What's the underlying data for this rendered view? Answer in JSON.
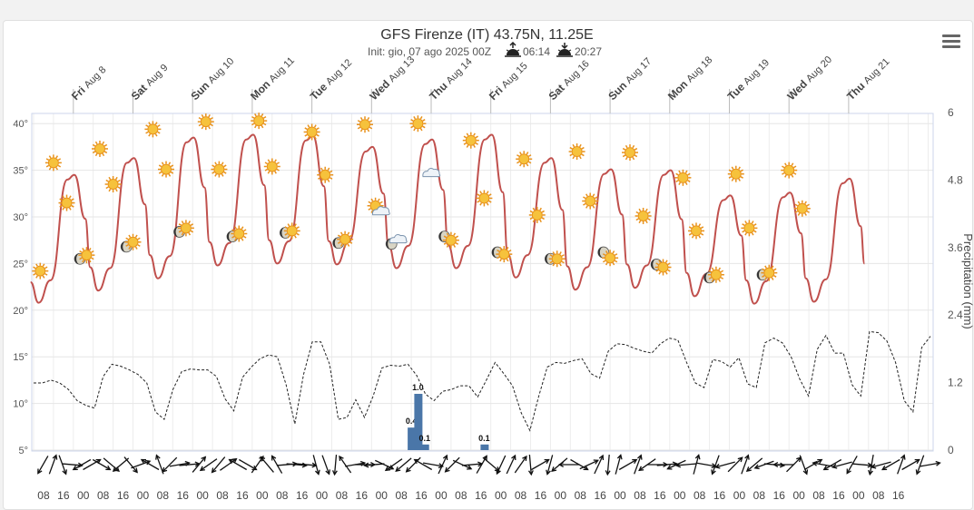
{
  "title": "GFS Firenze (IT) 43.75N, 11.25E",
  "subtitle": {
    "init": "Init: gio, 07 ago 2025 00Z",
    "sunrise": "06:14",
    "sunset": "20:27"
  },
  "menu_icon": "hamburger-menu-icon",
  "chart_data": {
    "type": "line",
    "x_day_labels": [
      {
        "dow": "Fri",
        "date": "Aug 8"
      },
      {
        "dow": "Sat",
        "date": "Aug 9"
      },
      {
        "dow": "Sun",
        "date": "Aug 10"
      },
      {
        "dow": "Mon",
        "date": "Aug 11"
      },
      {
        "dow": "Tue",
        "date": "Aug 12"
      },
      {
        "dow": "Wed",
        "date": "Aug 13"
      },
      {
        "dow": "Thu",
        "date": "Aug 14"
      },
      {
        "dow": "Fri",
        "date": "Aug 15"
      },
      {
        "dow": "Sat",
        "date": "Aug 16"
      },
      {
        "dow": "Sun",
        "date": "Aug 17"
      },
      {
        "dow": "Mon",
        "date": "Aug 18"
      },
      {
        "dow": "Tue",
        "date": "Aug 19"
      },
      {
        "dow": "Wed",
        "date": "Aug 20"
      },
      {
        "dow": "Thu",
        "date": "Aug 21"
      }
    ],
    "x_hour_labels": [
      "08",
      "16",
      "00",
      "08",
      "16",
      "00",
      "08",
      "16",
      "00",
      "08",
      "16",
      "00",
      "08",
      "16",
      "00",
      "08",
      "16",
      "00",
      "08",
      "16",
      "00",
      "08",
      "16",
      "00",
      "08",
      "16",
      "00",
      "08",
      "16",
      "00",
      "08",
      "16",
      "00",
      "08",
      "16",
      "00",
      "08",
      "16",
      "00",
      "08",
      "16",
      "00",
      "08",
      "16"
    ],
    "y_left": {
      "ticks": [
        "40°",
        "35°",
        "30°",
        "25°",
        "20°",
        "15°",
        "10°",
        "5°"
      ],
      "range": [
        5,
        41
      ]
    },
    "y_right": {
      "label": "Precipitation (mm)",
      "ticks": [
        "6",
        "4.8",
        "3.6",
        "2.4",
        "1.2",
        "0"
      ],
      "range": [
        0,
        6
      ]
    },
    "temperature": {
      "color": "#c0504d",
      "mins": [
        20.8,
        22.1,
        23.4,
        24.8,
        25.0,
        24.9,
        24.5,
        24.5,
        23.5,
        22.2,
        22.4,
        21.5,
        20.7,
        20.9
      ],
      "maxs": [
        34.5,
        36.3,
        38.5,
        38.8,
        38.7,
        37.5,
        38.3,
        38.8,
        36.3,
        35.1,
        35.0,
        32.3,
        32.6,
        34.1
      ]
    },
    "dewpoint": {
      "style": "dashed",
      "values": [
        12.2,
        12.2,
        12.5,
        12.2,
        11.5,
        10.3,
        9.8,
        9.5,
        12.9,
        14.2,
        14.0,
        13.6,
        13.1,
        12.2,
        9.1,
        8.3,
        11.5,
        13.4,
        13.7,
        13.6,
        13.6,
        12.9,
        10.5,
        9.2,
        12.8,
        13.9,
        14.8,
        15.2,
        15.0,
        12.0,
        7.8,
        13.1,
        16.6,
        16.6,
        14.2,
        8.3,
        8.5,
        10.4,
        8.5,
        10.8,
        13.8,
        14.1,
        14.0,
        14.2,
        13.0,
        11.0,
        10.3,
        11.3,
        11.5,
        11.9,
        11.9,
        10.7,
        12.5,
        14.4,
        13.2,
        11.9,
        9.0,
        7.1,
        10.7,
        13.9,
        14.4,
        14.3,
        14.6,
        14.8,
        13.2,
        12.7,
        15.6,
        16.4,
        16.3,
        15.9,
        15.6,
        15.4,
        16.4,
        17.0,
        16.8,
        14.4,
        12.2,
        11.7,
        14.7,
        14.5,
        13.9,
        14.9,
        12.1,
        11.7,
        16.5,
        17.0,
        16.5,
        15.0,
        12.6,
        10.8,
        15.8,
        17.3,
        15.4,
        15.4,
        12.0,
        10.8,
        17.7,
        17.6,
        16.7,
        14.4,
        10.3,
        9.1,
        16.0,
        17.2
      ]
    },
    "precipitation": [
      {
        "t": 19.0,
        "value": 0.4,
        "label": "0.4"
      },
      {
        "t": 19.333,
        "value": 1.0,
        "label": "1.0"
      },
      {
        "t": 19.667,
        "value": 0.1,
        "label": "0.1"
      },
      {
        "t": 22.667,
        "value": 0.1,
        "label": "0.1"
      }
    ],
    "weather_icons": [
      {
        "t": 0.333,
        "temp": 24.2,
        "kind": "sun"
      },
      {
        "t": 1.0,
        "temp": 35.8,
        "kind": "sun"
      },
      {
        "t": 1.667,
        "temp": 31.5,
        "kind": "sun"
      },
      {
        "t": 2.333,
        "temp": 25.5,
        "kind": "moon"
      },
      {
        "t": 2.667,
        "temp": 25.9,
        "kind": "sun"
      },
      {
        "t": 3.333,
        "temp": 37.3,
        "kind": "sun"
      },
      {
        "t": 4.0,
        "temp": 33.5,
        "kind": "sun"
      },
      {
        "t": 4.667,
        "temp": 26.8,
        "kind": "moon"
      },
      {
        "t": 5.0,
        "temp": 27.3,
        "kind": "sun"
      },
      {
        "t": 6.0,
        "temp": 39.4,
        "kind": "sun"
      },
      {
        "t": 6.667,
        "temp": 35.1,
        "kind": "sun"
      },
      {
        "t": 7.333,
        "temp": 28.4,
        "kind": "moon"
      },
      {
        "t": 7.667,
        "temp": 28.8,
        "kind": "sun"
      },
      {
        "t": 8.667,
        "temp": 40.2,
        "kind": "sun"
      },
      {
        "t": 9.333,
        "temp": 35.1,
        "kind": "sun"
      },
      {
        "t": 10.0,
        "temp": 27.9,
        "kind": "moon"
      },
      {
        "t": 10.333,
        "temp": 28.2,
        "kind": "sun"
      },
      {
        "t": 11.333,
        "temp": 40.3,
        "kind": "sun"
      },
      {
        "t": 12.0,
        "temp": 35.4,
        "kind": "sun"
      },
      {
        "t": 12.667,
        "temp": 28.3,
        "kind": "moon"
      },
      {
        "t": 13.0,
        "temp": 28.5,
        "kind": "sun"
      },
      {
        "t": 14.0,
        "temp": 39.1,
        "kind": "sun"
      },
      {
        "t": 14.667,
        "temp": 34.5,
        "kind": "sun"
      },
      {
        "t": 15.333,
        "temp": 27.2,
        "kind": "moon"
      },
      {
        "t": 15.667,
        "temp": 27.6,
        "kind": "sun"
      },
      {
        "t": 16.667,
        "temp": 39.9,
        "kind": "sun"
      },
      {
        "t": 17.333,
        "temp": 30.9,
        "kind": "sun-cloud"
      },
      {
        "t": 18.0,
        "temp": 27.1,
        "kind": "moon"
      },
      {
        "t": 18.333,
        "temp": 27.6,
        "kind": "cloud"
      },
      {
        "t": 19.333,
        "temp": 40.0,
        "kind": "sun"
      },
      {
        "t": 20.0,
        "temp": 34.7,
        "kind": "cloud"
      },
      {
        "t": 20.667,
        "temp": 27.9,
        "kind": "moon"
      },
      {
        "t": 21.0,
        "temp": 27.5,
        "kind": "sun"
      },
      {
        "t": 22.0,
        "temp": 38.2,
        "kind": "sun"
      },
      {
        "t": 22.667,
        "temp": 32.0,
        "kind": "sun"
      },
      {
        "t": 23.333,
        "temp": 26.2,
        "kind": "moon"
      },
      {
        "t": 23.667,
        "temp": 26.0,
        "kind": "sun"
      },
      {
        "t": 24.667,
        "temp": 36.2,
        "kind": "sun"
      },
      {
        "t": 25.333,
        "temp": 30.2,
        "kind": "sun"
      },
      {
        "t": 26.0,
        "temp": 25.5,
        "kind": "moon"
      },
      {
        "t": 26.333,
        "temp": 25.5,
        "kind": "sun"
      },
      {
        "t": 27.333,
        "temp": 37.0,
        "kind": "sun"
      },
      {
        "t": 28.0,
        "temp": 31.7,
        "kind": "sun"
      },
      {
        "t": 28.667,
        "temp": 26.2,
        "kind": "moon"
      },
      {
        "t": 29.0,
        "temp": 25.6,
        "kind": "sun"
      },
      {
        "t": 30.0,
        "temp": 36.9,
        "kind": "sun"
      },
      {
        "t": 30.667,
        "temp": 30.1,
        "kind": "sun"
      },
      {
        "t": 31.333,
        "temp": 24.9,
        "kind": "moon"
      },
      {
        "t": 31.667,
        "temp": 24.6,
        "kind": "sun"
      },
      {
        "t": 32.667,
        "temp": 34.2,
        "kind": "sun"
      },
      {
        "t": 33.333,
        "temp": 28.5,
        "kind": "sun"
      },
      {
        "t": 34.0,
        "temp": 23.5,
        "kind": "moon"
      },
      {
        "t": 34.333,
        "temp": 23.8,
        "kind": "sun"
      },
      {
        "t": 35.333,
        "temp": 34.6,
        "kind": "sun"
      },
      {
        "t": 36.0,
        "temp": 28.8,
        "kind": "sun"
      },
      {
        "t": 36.667,
        "temp": 23.8,
        "kind": "moon"
      },
      {
        "t": 37.0,
        "temp": 24.0,
        "kind": "sun"
      },
      {
        "t": 38.0,
        "temp": 35.0,
        "kind": "sun"
      },
      {
        "t": 38.667,
        "temp": 30.9,
        "kind": "sun"
      }
    ],
    "wind_directions_deg": [
      210,
      20,
      160,
      95,
      240,
      60,
      120,
      130,
      230,
      140,
      70,
      300,
      340,
      225,
      80,
      85,
      40,
      235,
      220,
      55,
      300,
      120,
      35,
      320,
      330,
      85,
      95,
      95,
      165,
      160,
      185,
      325,
      80,
      90,
      265,
      115,
      235,
      230,
      225,
      300,
      100,
      25,
      225,
      115,
      85,
      30,
      130,
      205,
      25,
      35,
      175,
      60,
      195,
      230,
      270,
      120,
      65,
      25,
      185,
      15,
      60,
      20,
      235,
      90,
      85,
      245,
      265,
      15,
      100,
      200,
      255,
      45,
      20,
      230,
      250,
      95,
      270,
      45,
      160,
      60,
      280,
      240,
      255,
      210,
      95,
      190,
      255,
      240,
      20,
      60,
      200,
      80
    ]
  }
}
